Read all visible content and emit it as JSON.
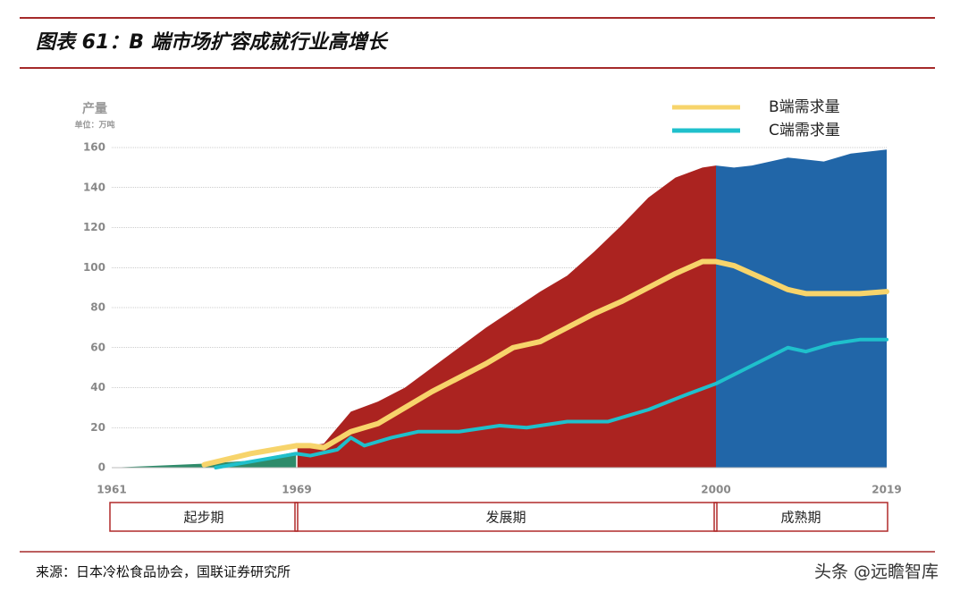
{
  "header": {
    "title": "图表 61：B 端市场扩容成就行业高增长"
  },
  "chart_data": {
    "type": "area-line",
    "y_label": "产量",
    "y_unit": "单位：万吨",
    "xlim": [
      1961,
      2019
    ],
    "xticks": [
      1961,
      1969,
      2000,
      2019
    ],
    "ylim": [
      0,
      160
    ],
    "yticks": [
      0,
      20,
      40,
      60,
      80,
      100,
      120,
      140,
      160
    ],
    "grid": true,
    "areas": [
      {
        "color": "#2e8b6a",
        "x": [
          1961,
          1963,
          1965,
          1967,
          1969
        ],
        "values": [
          0,
          1,
          2,
          3.5,
          8
        ]
      },
      {
        "color": "#ab2320",
        "x": [
          1969,
          1971,
          1973,
          1975,
          1977,
          1979,
          1981,
          1983,
          1985,
          1987,
          1989,
          1991,
          1993,
          1995,
          1997,
          1999,
          2000
        ],
        "values": [
          10,
          12,
          28,
          33,
          40,
          50,
          60,
          70,
          79,
          88,
          96,
          108,
          121,
          135,
          145,
          150,
          151
        ]
      },
      {
        "color": "#2166a8",
        "x": [
          2000,
          2002,
          2004,
          2008,
          2012,
          2015,
          2019
        ],
        "values": [
          151,
          150,
          151,
          155,
          153,
          157,
          159
        ]
      }
    ],
    "series": [
      {
        "name": "B端需求量",
        "color": "#f7d46b",
        "x": [
          1965,
          1967,
          1969,
          1970,
          1971,
          1973,
          1975,
          1977,
          1979,
          1981,
          1983,
          1985,
          1987,
          1989,
          1991,
          1993,
          1995,
          1997,
          1999,
          2000,
          2002,
          2004,
          2006,
          2008,
          2010,
          2013,
          2016,
          2019
        ],
        "values": [
          1.5,
          7,
          11,
          11,
          10,
          18,
          22,
          30,
          38,
          45,
          52,
          60,
          63,
          70,
          77,
          83,
          90,
          97,
          103,
          103,
          101,
          97,
          93,
          89,
          87,
          87,
          87,
          88
        ]
      },
      {
        "name": "C端需求量",
        "color": "#1fc0cc",
        "x": [
          1965.5,
          1967,
          1969,
          1970,
          1972,
          1973,
          1974,
          1976,
          1978,
          1981,
          1984,
          1986,
          1989,
          1992,
          1995,
          1998,
          2000,
          2004,
          2008,
          2010,
          2013,
          2016,
          2019
        ],
        "values": [
          0,
          3,
          7,
          6,
          9,
          15,
          11,
          15,
          18,
          18,
          21,
          20,
          23,
          23,
          29,
          37,
          42,
          51,
          60,
          58,
          62,
          64,
          64
        ]
      }
    ],
    "legend": "top-right",
    "phases": [
      "起步期",
      "发展期",
      "成熟期"
    ]
  },
  "footer": {
    "source": "来源：日本冷松食品协会，国联证券研究所",
    "watermark": "头条 @远瞻智库"
  }
}
